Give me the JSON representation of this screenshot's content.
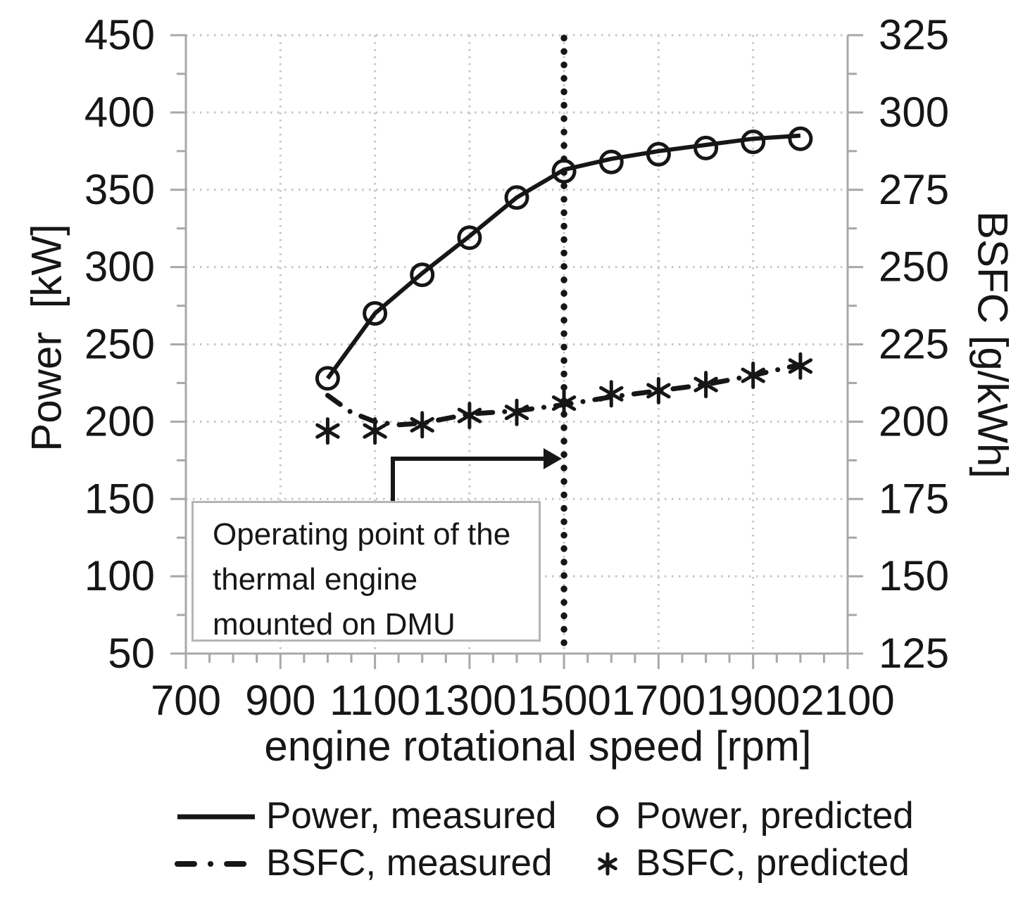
{
  "chart_data": {
    "type": "line",
    "title": "",
    "x_axis": {
      "label": "engine rotational speed [rpm]",
      "min": 700,
      "max": 2100,
      "ticks": [
        700,
        900,
        1100,
        1300,
        1500,
        1700,
        1900,
        2100
      ],
      "minor_tick_step": 50
    },
    "y_axis_left": {
      "label": "Power  [kW]",
      "min": 50,
      "max": 450,
      "ticks": [
        50,
        100,
        150,
        200,
        250,
        300,
        350,
        400,
        450
      ],
      "minor_tick_step": 25
    },
    "y_axis_right": {
      "label": "BSFC [g/kWh]",
      "min": 125,
      "max": 325,
      "ticks": [
        125,
        150,
        175,
        200,
        225,
        250,
        275,
        300,
        325
      ],
      "minor_tick_step": 12.5
    },
    "grid": {
      "horizontal_left_values": [
        100,
        150,
        200,
        250,
        300,
        350,
        400,
        450
      ],
      "vertical_rpm_values": [
        900,
        1100,
        1300,
        1500,
        1700,
        1900
      ]
    },
    "series": [
      {
        "name": "Power, measured",
        "axis": "left",
        "style": "solid-line",
        "x": [
          1000,
          1100,
          1200,
          1300,
          1400,
          1500,
          1600,
          1700,
          1800,
          1900,
          2000
        ],
        "y": [
          228,
          270,
          296,
          320,
          345,
          363,
          370,
          375,
          379,
          383,
          385
        ]
      },
      {
        "name": "Power, predicted",
        "axis": "left",
        "style": "circle-marker",
        "x": [
          1000,
          1100,
          1200,
          1300,
          1400,
          1500,
          1600,
          1700,
          1800,
          1900,
          2000
        ],
        "y": [
          228,
          270,
          295,
          319,
          345,
          362,
          368,
          373,
          377,
          381,
          383
        ]
      },
      {
        "name": "BSFC, measured",
        "axis": "right",
        "style": "dash-dot-line",
        "x": [
          1000,
          1050,
          1100,
          1150,
          1200,
          1300,
          1400,
          1500,
          1600,
          1700,
          1800,
          1900,
          2000
        ],
        "y": [
          208.5,
          203,
          200,
          199,
          199.5,
          202.5,
          203.5,
          205.5,
          208,
          210,
          212,
          215,
          218.5
        ]
      },
      {
        "name": "BSFC, predicted",
        "axis": "right",
        "style": "asterisk-marker",
        "x": [
          1000,
          1100,
          1200,
          1300,
          1400,
          1500,
          1600,
          1700,
          1800,
          1900,
          2000
        ],
        "y": [
          197,
          197,
          199,
          202,
          203,
          206,
          209,
          210,
          212,
          215,
          218
        ]
      }
    ],
    "annotation": {
      "lines": [
        "Operating point of the",
        "thermal engine",
        "mounted on DMU"
      ],
      "vline_rpm": 1500
    },
    "legend_position": "bottom",
    "colors": {
      "data": "#161616",
      "axis": "#a8a8a8",
      "grid": "#c5c5c5",
      "annotation_border": "#b5b5b5",
      "background": "#ffffff"
    }
  }
}
